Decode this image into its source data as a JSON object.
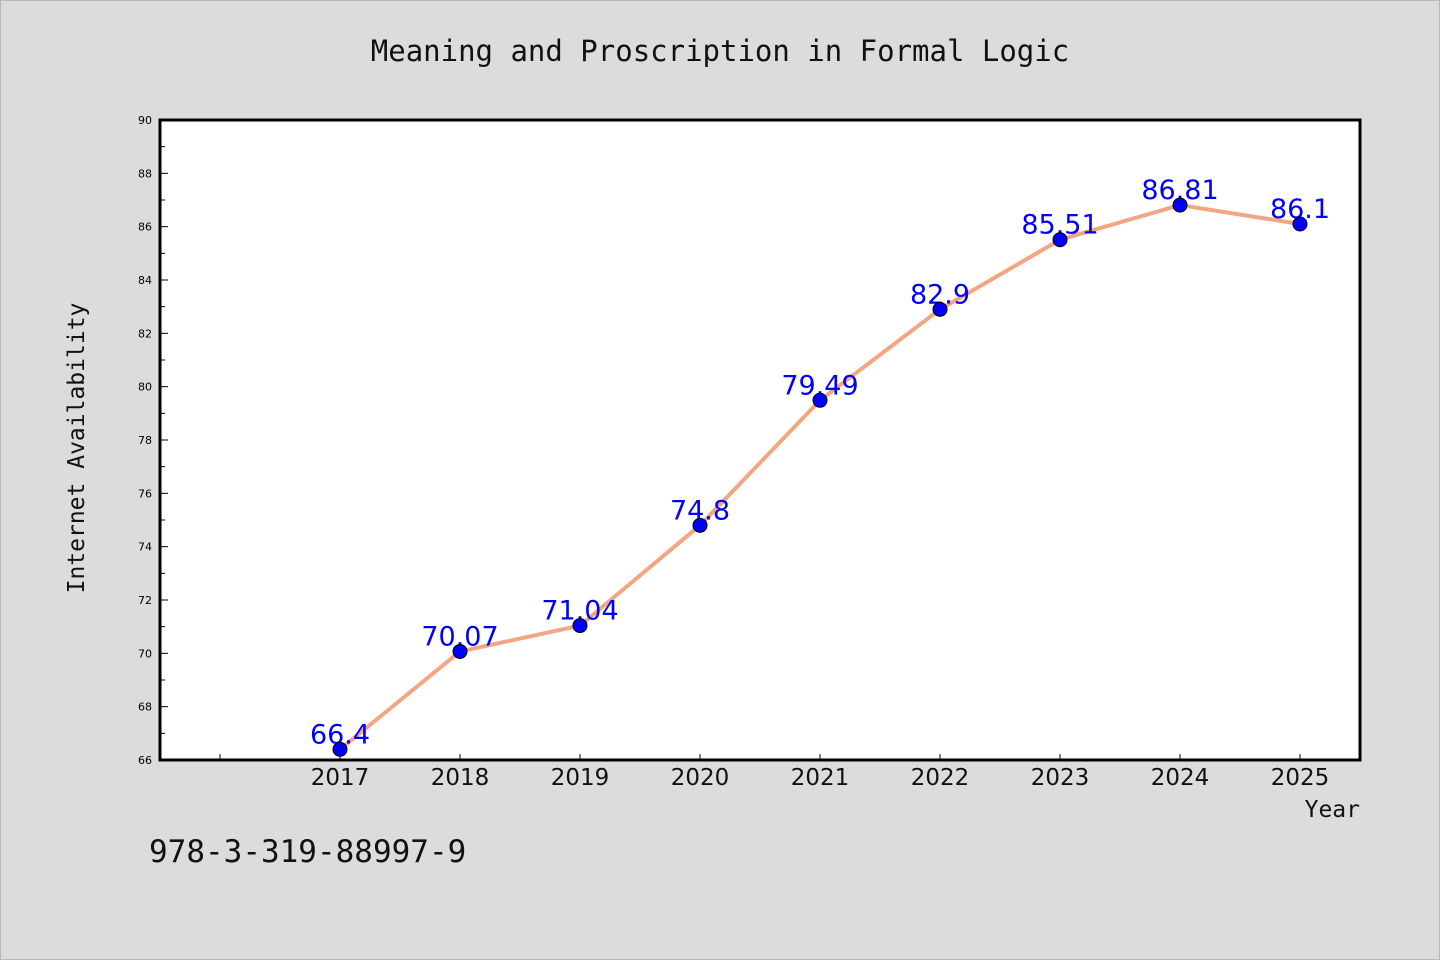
{
  "figure": {
    "title": "Meaning and Proscription in Formal Logic",
    "footnote": "978-3-319-88997-9",
    "background_color": "#dcdcdc"
  },
  "chart_data": {
    "type": "line",
    "title": "Meaning and Proscription in Formal Logic",
    "xlabel": "Year",
    "ylabel": "Internet Availability",
    "categories": [
      "2017",
      "2018",
      "2019",
      "2020",
      "2021",
      "2022",
      "2023",
      "2024",
      "2025"
    ],
    "series": [
      {
        "values": [
          66.4,
          70.07,
          71.04,
          74.8,
          79.49,
          82.9,
          85.51,
          86.81,
          86.1
        ],
        "data_labels": [
          "66.4",
          "70.07",
          "71.04",
          "74.8",
          "79.49",
          "82.9",
          "85.51",
          "86.81",
          "86.1"
        ],
        "line_color": "#f4a582",
        "marker_color": "#0000ff"
      }
    ],
    "ylim": [
      66,
      90
    ],
    "y_ticks": [
      "66",
      "68",
      "70",
      "72",
      "74",
      "76",
      "78",
      "80",
      "82",
      "84",
      "86",
      "88",
      "90"
    ],
    "label_color": "#0000ff",
    "grid": false,
    "legend": "none"
  }
}
